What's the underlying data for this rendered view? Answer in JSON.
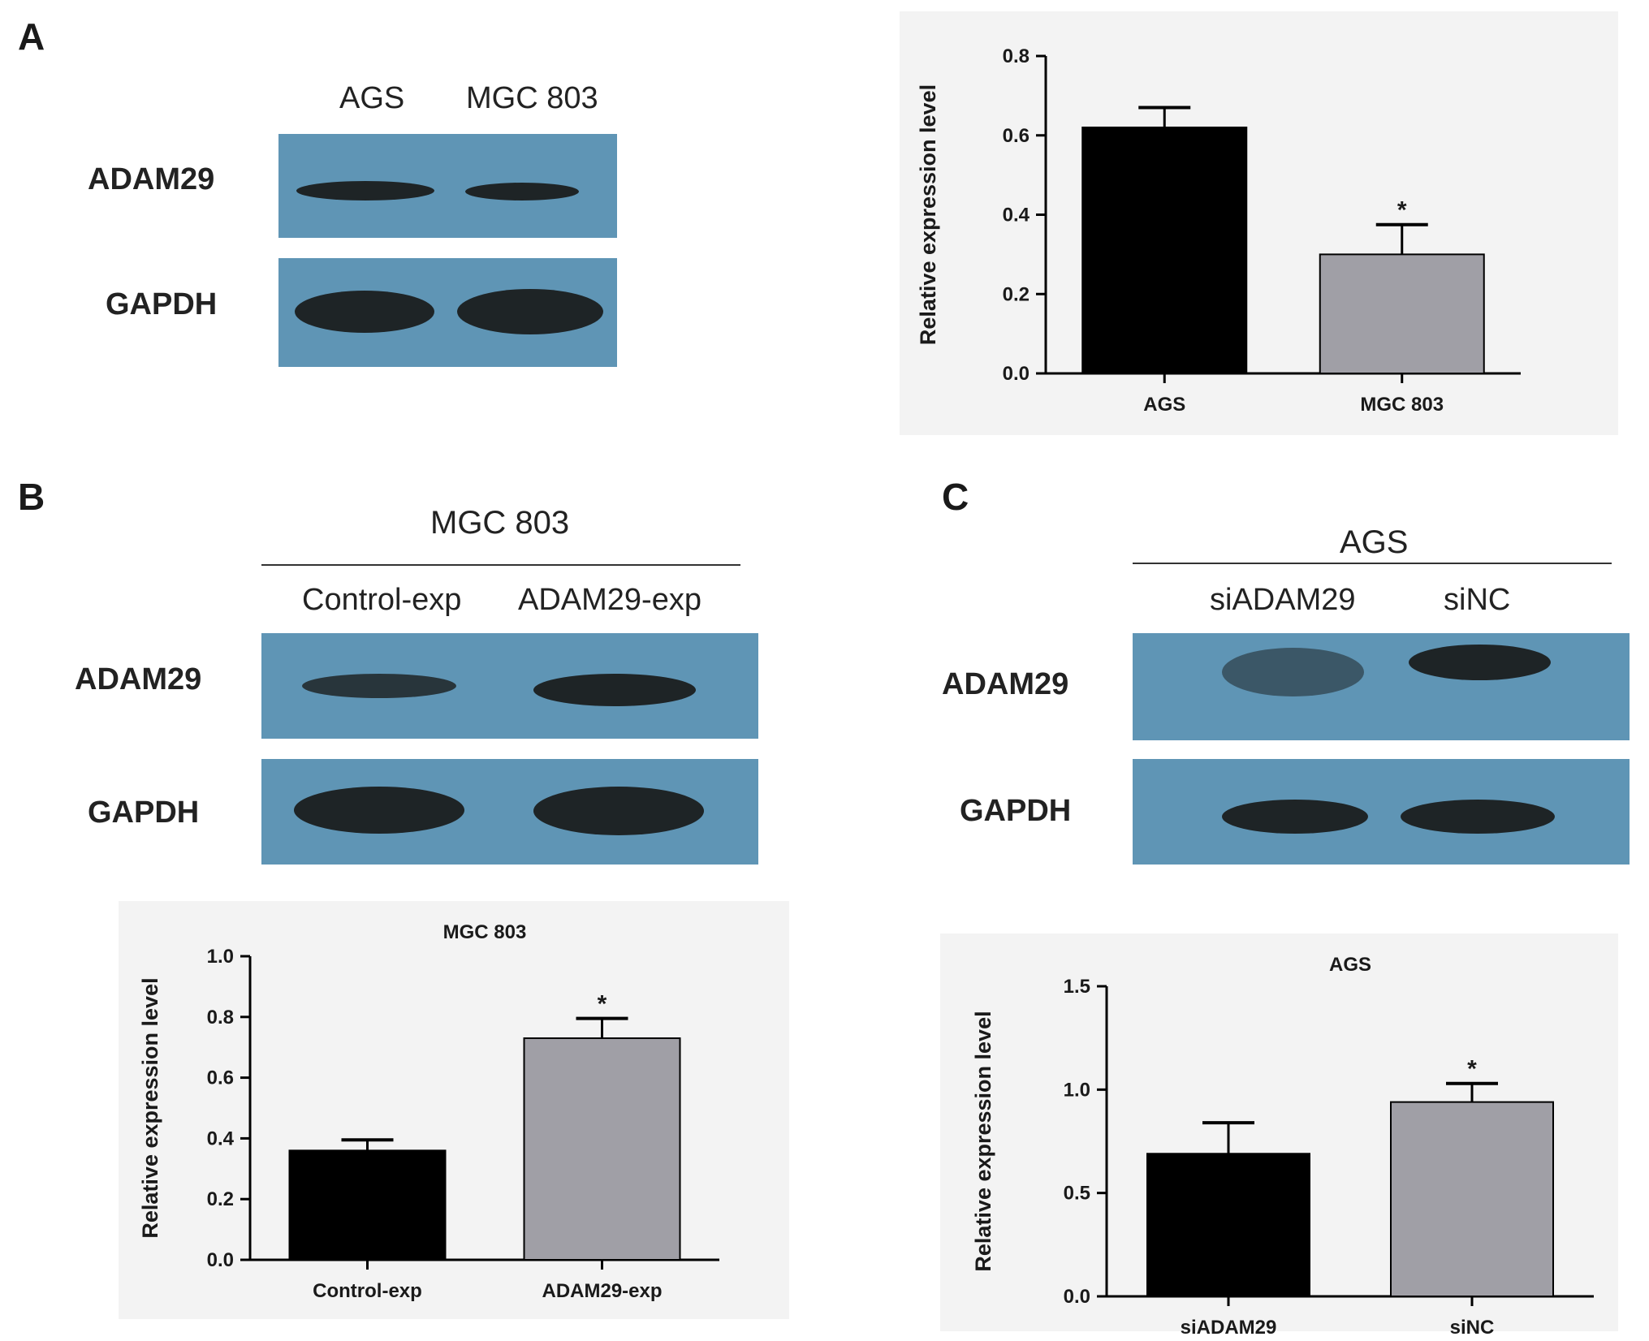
{
  "panels": {
    "A": {
      "letter": "A",
      "blot": {
        "lanes": [
          "AGS",
          "MGC 803"
        ],
        "rows": [
          "ADAM29",
          "GAPDH"
        ]
      }
    },
    "B": {
      "letter": "B",
      "blot": {
        "group": "MGC 803",
        "lanes": [
          "Control-exp",
          "ADAM29-exp"
        ],
        "rows": [
          "ADAM29",
          "GAPDH"
        ]
      }
    },
    "C": {
      "letter": "C",
      "blot": {
        "group": "AGS",
        "lanes": [
          "siADAM29",
          "siNC"
        ],
        "rows": [
          "ADAM29",
          "GAPDH"
        ]
      }
    }
  },
  "colors": {
    "bar_black": "#000000",
    "bar_gray": "#a09fa6",
    "blot_bg": "#5f95b5",
    "band": "#1e2426"
  },
  "chart_data": [
    {
      "type": "bar",
      "panel": "A",
      "title": "",
      "xlabel": "",
      "ylabel": "Relative expression level",
      "categories": [
        "AGS",
        "MGC 803"
      ],
      "values": [
        0.62,
        0.3
      ],
      "errors": [
        0.05,
        0.075
      ],
      "significance": [
        "",
        "*"
      ],
      "ylim": [
        0,
        0.8
      ],
      "yticks": [
        "0.0",
        "0.2",
        "0.4",
        "0.6",
        "0.8"
      ],
      "ytick_values": [
        0,
        0.2,
        0.4,
        0.6,
        0.8
      ]
    },
    {
      "type": "bar",
      "panel": "B",
      "title": "MGC 803",
      "xlabel": "",
      "ylabel": "Relative expression level",
      "categories": [
        "Control-exp",
        "ADAM29-exp"
      ],
      "values": [
        0.36,
        0.73
      ],
      "errors": [
        0.035,
        0.065
      ],
      "significance": [
        "",
        "*"
      ],
      "ylim": [
        0,
        1.0
      ],
      "yticks": [
        "0.0",
        "0.2",
        "0.4",
        "0.6",
        "0.8",
        "1.0"
      ],
      "ytick_values": [
        0,
        0.2,
        0.4,
        0.6,
        0.8,
        1.0
      ]
    },
    {
      "type": "bar",
      "panel": "C",
      "title": "AGS",
      "xlabel": "",
      "ylabel": "Relative expression level",
      "categories": [
        "siADAM29",
        "siNC"
      ],
      "values": [
        0.69,
        0.94
      ],
      "errors": [
        0.15,
        0.09
      ],
      "significance": [
        "",
        "*"
      ],
      "ylim": [
        0,
        1.5
      ],
      "yticks": [
        "0.0",
        "0.5",
        "1.0",
        "1.5"
      ],
      "ytick_values": [
        0,
        0.5,
        1.0,
        1.5
      ]
    }
  ]
}
